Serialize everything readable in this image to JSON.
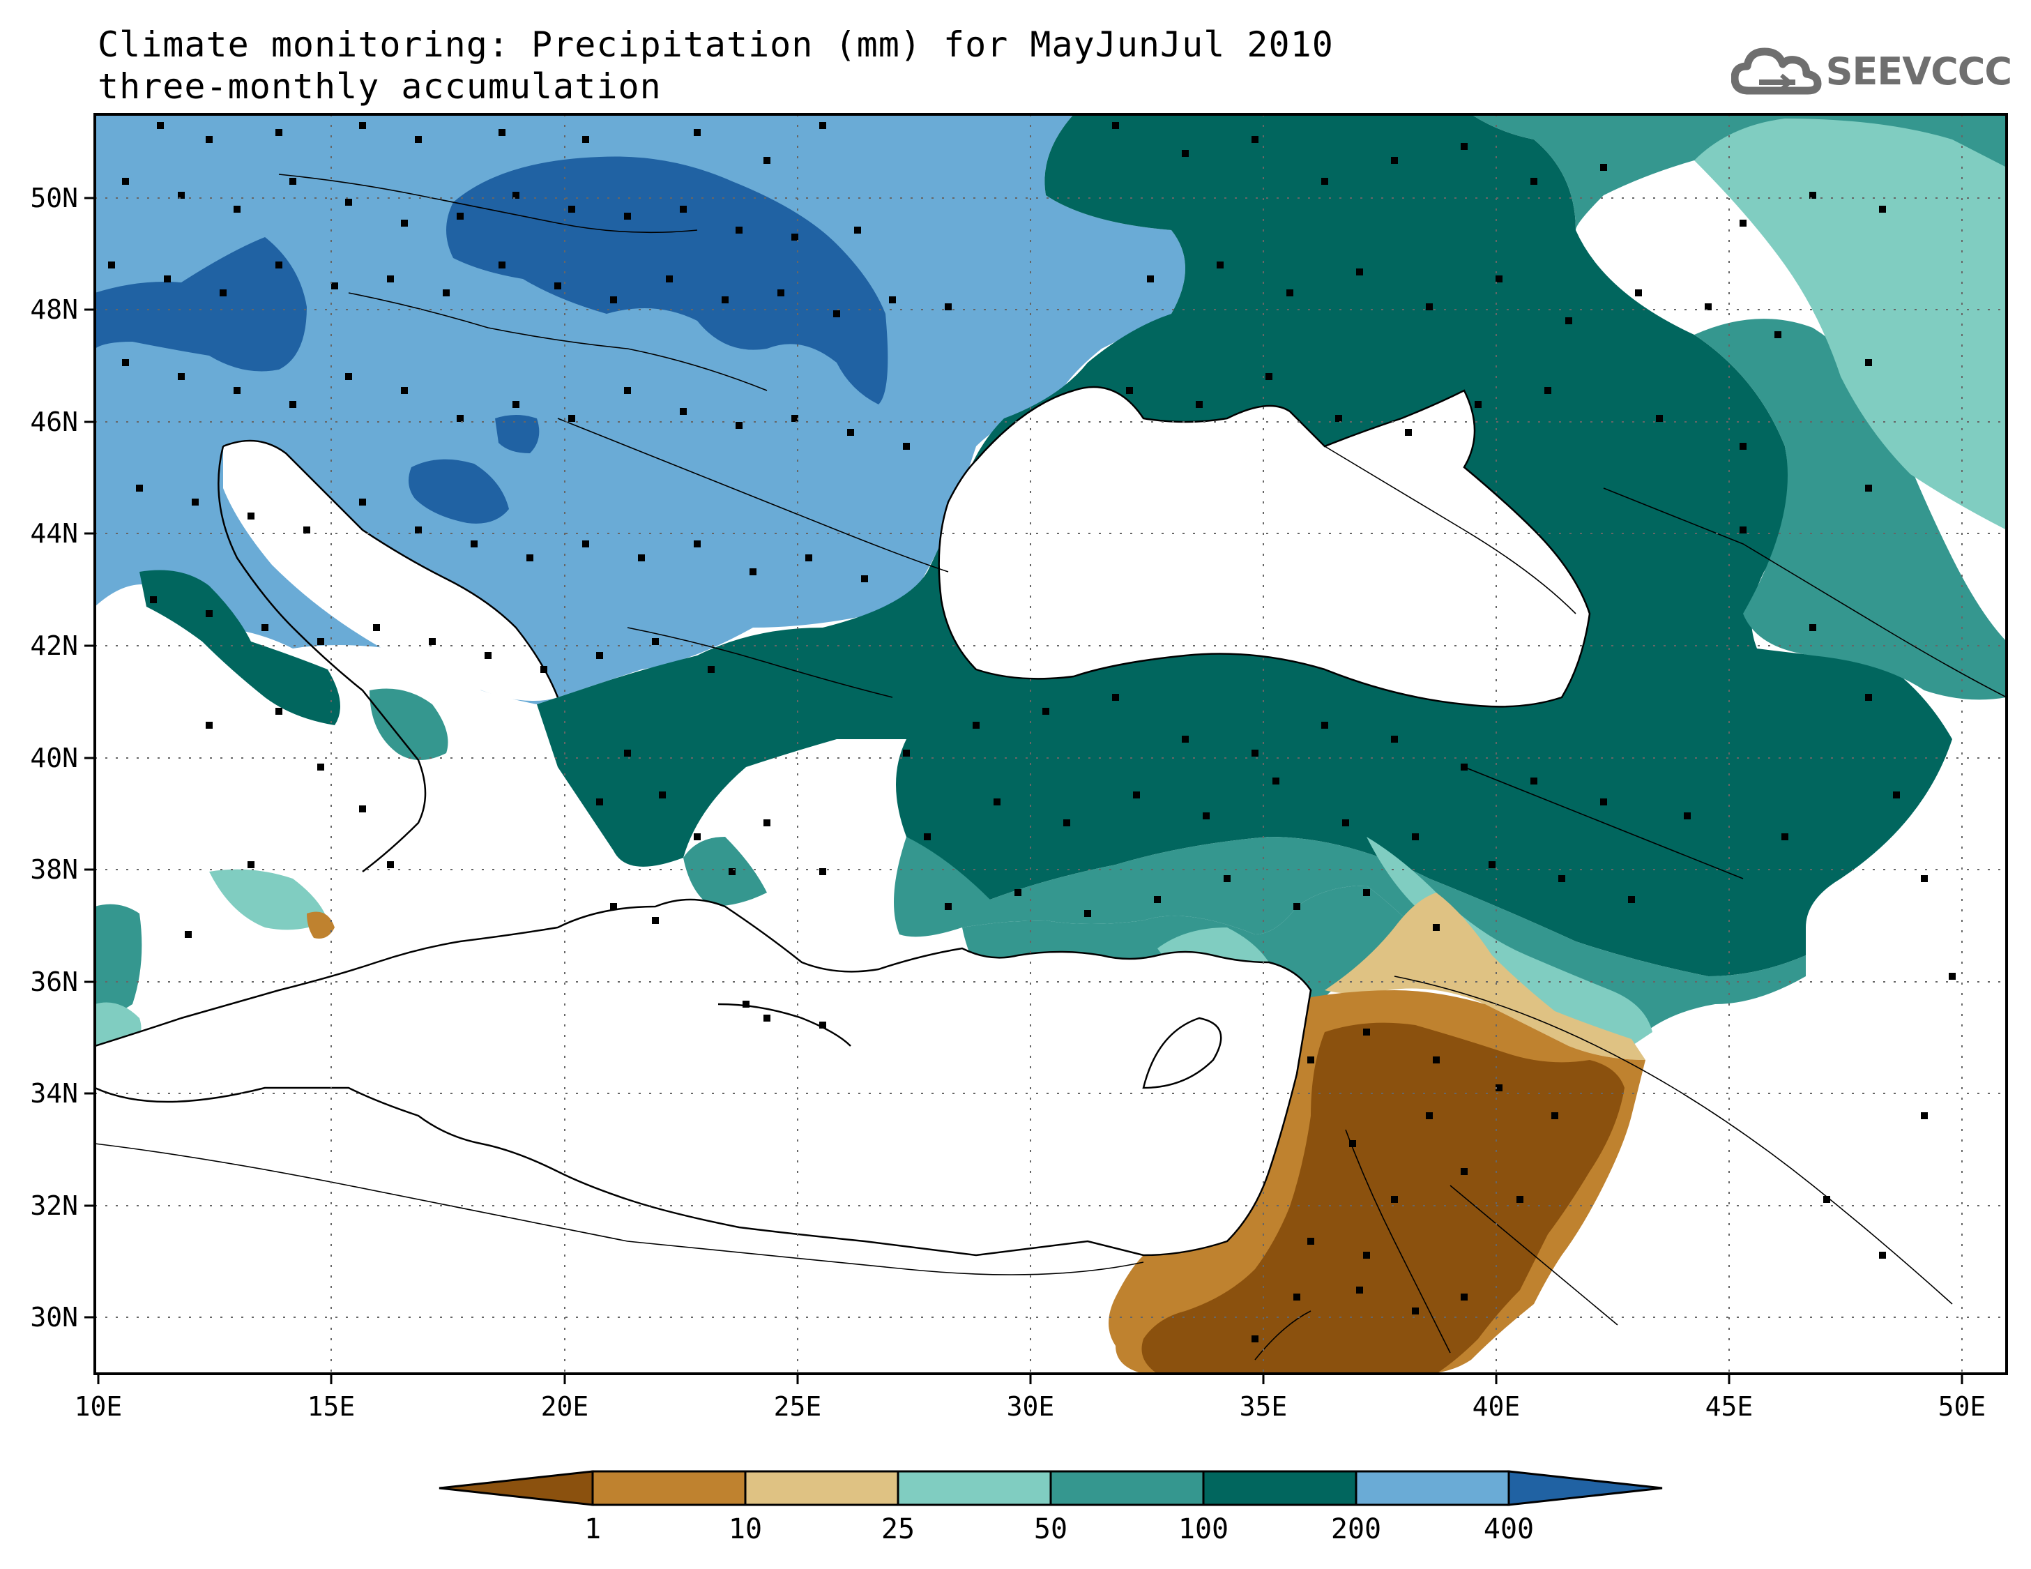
{
  "title": {
    "line1": "Climate monitoring: Precipitation (mm) for MayJunJul 2010",
    "line2": "three-monthly accumulation"
  },
  "logo": {
    "text": "SEEVCCC",
    "icon": "cloud-icon"
  },
  "map": {
    "lon_range": [
      10,
      51
    ],
    "lat_range": [
      29,
      51.5
    ],
    "lon_ticks": [
      "10E",
      "15E",
      "20E",
      "25E",
      "30E",
      "35E",
      "40E",
      "45E",
      "50E"
    ],
    "lat_ticks": [
      "30N",
      "32N",
      "34N",
      "36N",
      "38N",
      "40N",
      "42N",
      "44N",
      "46N",
      "48N",
      "50N"
    ],
    "grid": "dotted"
  },
  "colorbar": {
    "thresholds": [
      "1",
      "10",
      "25",
      "50",
      "100",
      "200",
      "400"
    ],
    "colors": [
      "#8b510e",
      "#bf822f",
      "#dfc283",
      "#80cdc1",
      "#35978f",
      "#01665e",
      "#6aabd6",
      "#2062a3"
    ]
  }
}
